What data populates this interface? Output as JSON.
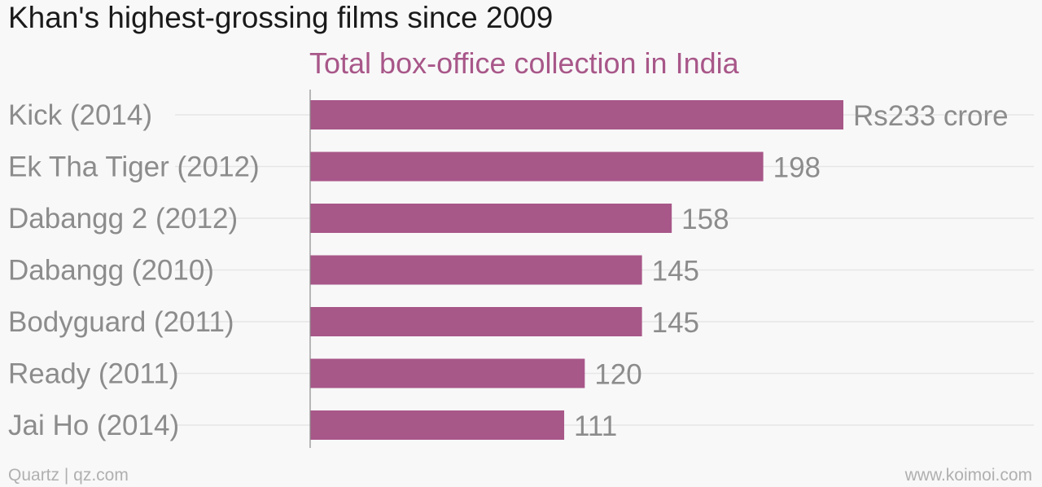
{
  "title": "Khan's highest-grossing films since 2009",
  "colors": {
    "bar": "#a85789",
    "subtitle": "#a85789",
    "gridline": "#e6e6e6",
    "axis": "#8c8c8c"
  },
  "chart_data": {
    "type": "bar",
    "orientation": "horizontal",
    "title": "Khan's highest-grossing films since 2009",
    "subtitle": "Total box-office collection in India",
    "categories": [
      "Kick (2014)",
      "Ek Tha Tiger (2012)",
      "Dabangg 2 (2012)",
      "Dabangg (2010)",
      "Bodyguard (2011)",
      "Ready (2011)",
      "Jai Ho (2014)"
    ],
    "values": [
      233,
      198,
      158,
      145,
      145,
      120,
      111
    ],
    "data_labels": [
      "Rs233 crore",
      "198",
      "158",
      "145",
      "145",
      "120",
      "111"
    ],
    "xlim": [
      0,
      233
    ],
    "grid": true
  },
  "footer": {
    "source_left": "Quartz | qz.com",
    "source_right": "www.koimoi.com"
  }
}
